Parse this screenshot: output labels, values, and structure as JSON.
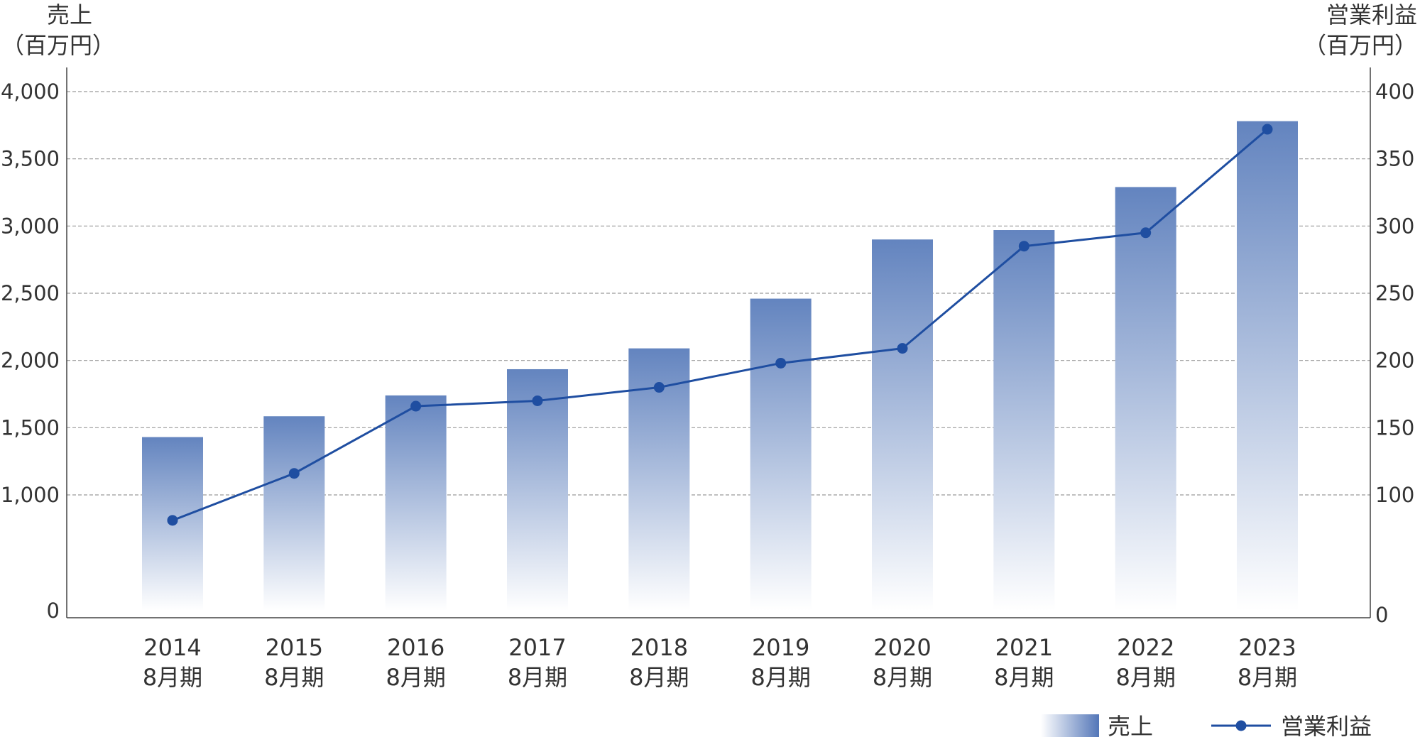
{
  "chart_data": {
    "type": "bar",
    "title": "",
    "categories": [
      [
        "2014",
        "8月期"
      ],
      [
        "2015",
        "8月期"
      ],
      [
        "2016",
        "8月期"
      ],
      [
        "2017",
        "8月期"
      ],
      [
        "2018",
        "8月期"
      ],
      [
        "2019",
        "8月期"
      ],
      [
        "2020",
        "8月期"
      ],
      [
        "2021",
        "8月期"
      ],
      [
        "2022",
        "8月期"
      ],
      [
        "2023",
        "8月期"
      ]
    ],
    "left_axis": {
      "title": [
        "売上",
        "（百万円）"
      ],
      "range": [
        0,
        4000
      ],
      "ticks": [
        {
          "value": 0,
          "label": "0"
        },
        {
          "value": 1000,
          "label": "1,000"
        },
        {
          "value": 1500,
          "label": "1,500"
        },
        {
          "value": 2000,
          "label": "2,000"
        },
        {
          "value": 2500,
          "label": "2,500"
        },
        {
          "value": 3000,
          "label": "3,000"
        },
        {
          "value": 3500,
          "label": "3,500"
        },
        {
          "value": 4000,
          "label": "4,000"
        }
      ]
    },
    "right_axis": {
      "title": [
        "営業利益",
        "（百万円）"
      ],
      "range": [
        0,
        400
      ],
      "ticks": [
        {
          "value": 0,
          "label": "0"
        },
        {
          "value": 100,
          "label": "100"
        },
        {
          "value": 150,
          "label": "150"
        },
        {
          "value": 200,
          "label": "200"
        },
        {
          "value": 250,
          "label": "250"
        },
        {
          "value": 300,
          "label": "300"
        },
        {
          "value": 350,
          "label": "350"
        },
        {
          "value": 400,
          "label": "400"
        }
      ]
    },
    "broken_axis_segment": [
      0,
      1000
    ],
    "series": [
      {
        "name": "売上",
        "type": "bar",
        "axis": "left",
        "color": "#6384bf",
        "values": [
          1430,
          1585,
          1740,
          1935,
          2090,
          2460,
          2900,
          2970,
          3290,
          3780
        ]
      },
      {
        "name": "営業利益",
        "type": "line",
        "axis": "right",
        "color": "#1f4ea1",
        "values": [
          78,
          116,
          166,
          170,
          180,
          198,
          209,
          285,
          295,
          372
        ]
      }
    ],
    "grid": true,
    "legend_position": "bottom-right"
  }
}
